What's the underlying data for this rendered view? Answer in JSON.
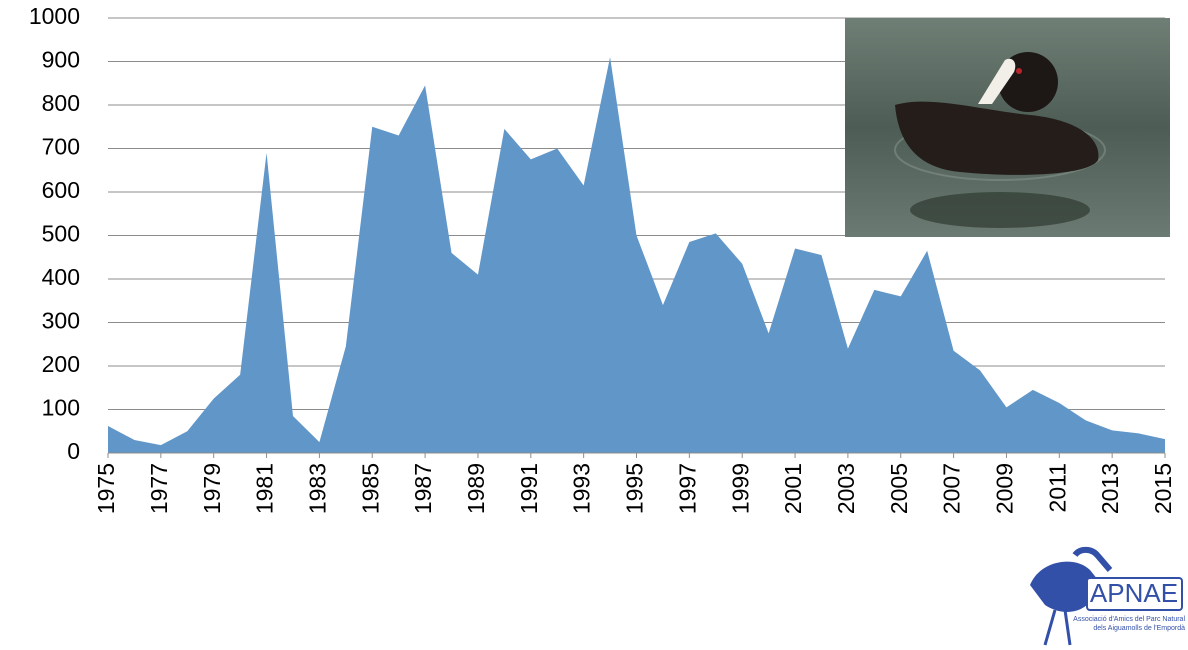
{
  "chart_data": {
    "type": "area",
    "x": [
      1975,
      1976,
      1977,
      1978,
      1979,
      1980,
      1981,
      1982,
      1983,
      1984,
      1985,
      1986,
      1987,
      1988,
      1989,
      1990,
      1991,
      1992,
      1993,
      1994,
      1995,
      1996,
      1997,
      1998,
      1999,
      2000,
      2001,
      2002,
      2003,
      2004,
      2005,
      2006,
      2007,
      2008,
      2009,
      2010,
      2011,
      2012,
      2013,
      2014,
      2015
    ],
    "series": [
      {
        "color": "#6196c9",
        "values": [
          62,
          30,
          18,
          50,
          125,
          180,
          690,
          85,
          25,
          245,
          750,
          730,
          845,
          460,
          410,
          745,
          675,
          700,
          615,
          910,
          500,
          340,
          485,
          505,
          435,
          275,
          470,
          455,
          240,
          375,
          360,
          465,
          235,
          190,
          105,
          145,
          115,
          75,
          52,
          45,
          32
        ]
      }
    ],
    "xlim": [
      1975,
      2015
    ],
    "xticks": [
      1975,
      1977,
      1979,
      1981,
      1983,
      1985,
      1987,
      1989,
      1991,
      1993,
      1995,
      1997,
      1999,
      2001,
      2003,
      2005,
      2007,
      2009,
      2011,
      2013,
      2015
    ],
    "ylim": [
      0,
      1000
    ],
    "yticks": [
      0,
      100,
      200,
      300,
      400,
      500,
      600,
      700,
      800,
      900,
      1000
    ],
    "grid": true
  },
  "logo": {
    "name": "APNAE",
    "caption_line1": "Associació d'Amics del Parc Natural",
    "caption_line2": "dels Aiguamolls de l'Empordà"
  }
}
